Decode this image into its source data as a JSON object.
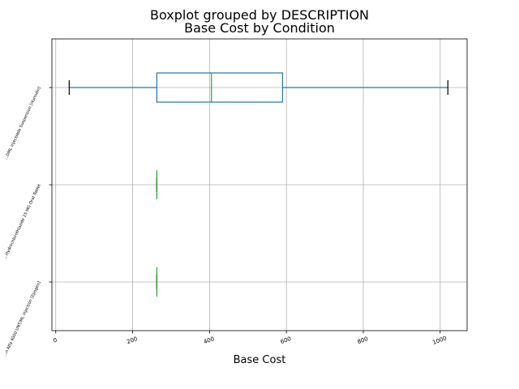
{
  "chart_data": {
    "type": "boxplot",
    "suptitle": "Boxplot grouped by DESCRIPTION",
    "title": "Base Cost by Condition",
    "xlabel": "Base Cost",
    "ylabel": "",
    "xlim": [
      -10,
      1070
    ],
    "xticks": [
      0,
      200,
      400,
      600,
      800,
      1000
    ],
    "xtick_labels": [
      "0",
      "200",
      "400",
      "600",
      "800",
      "1000"
    ],
    "grid": true,
    "orientation": "horizontal",
    "colors": {
      "box": "#1f77b4",
      "median": "#2ca02c",
      "whisker_cap": "#000000",
      "grid": "#b0b0b0"
    },
    "categories": [
      "...DML Injectable Suspension [Humulin]",
      "...Hydrochlorothiazide 25 MG Oral Tablet",
      "...n Alfa 4000 UNT/ML Injection [Epogen]"
    ],
    "boxes": [
      {
        "min": 35,
        "q1": 263,
        "median": 405,
        "q3": 590,
        "max": 1020
      },
      {
        "min": 263,
        "q1": 263,
        "median": 263,
        "q3": 263,
        "max": 263
      },
      {
        "min": 263,
        "q1": 263,
        "median": 263,
        "q3": 263,
        "max": 263
      }
    ]
  }
}
